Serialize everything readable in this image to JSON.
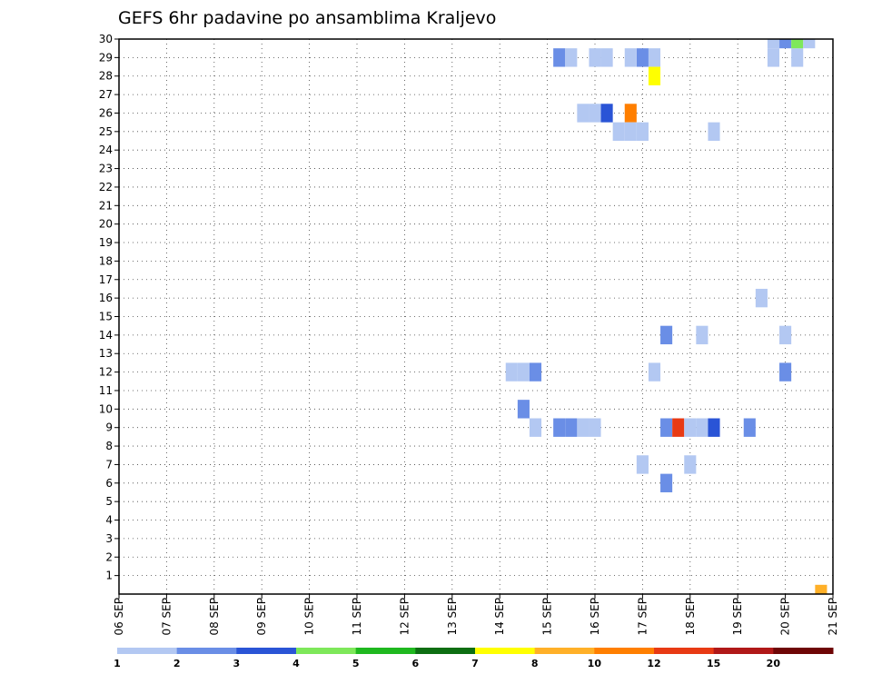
{
  "chart_data": {
    "type": "heatmap",
    "title": "GEFS 6hr padavine po ansamblima Kraljevo",
    "xlabel": "",
    "ylabel": "",
    "x_tick_labels": [
      "06 SEP",
      "07 SEP",
      "08 SEP",
      "09 SEP",
      "10 SEP",
      "11 SEP",
      "12 SEP",
      "13 SEP",
      "14 SEP",
      "15 SEP",
      "16 SEP",
      "17 SEP",
      "18 SEP",
      "19 SEP",
      "20 SEP",
      "21 SEP"
    ],
    "x_range_days": [
      0,
      15
    ],
    "x_step_days": 0.25,
    "y_ticks": [
      1,
      2,
      3,
      4,
      5,
      6,
      7,
      8,
      9,
      10,
      11,
      12,
      13,
      14,
      15,
      16,
      17,
      18,
      19,
      20,
      21,
      22,
      23,
      24,
      25,
      26,
      27,
      28,
      29,
      30
    ],
    "y_range": [
      0,
      30
    ],
    "grid": true,
    "colorbar": {
      "placement": "bottom",
      "tick_labels": [
        "1",
        "2",
        "3",
        "4",
        "5",
        "6",
        "7",
        "8",
        "10",
        "12",
        "15",
        "20"
      ],
      "colors": [
        "#b3c8f2",
        "#6a8ee6",
        "#2a54d6",
        "#7ee85a",
        "#1fb81f",
        "#0d6e12",
        "#ffff00",
        "#ffb028",
        "#ff7f00",
        "#e83a14",
        "#b01818",
        "#6e0505"
      ]
    },
    "cells": [
      {
        "t": 11.0,
        "member": 29,
        "level": 2
      },
      {
        "t": 11.25,
        "member": 29,
        "level": 1
      },
      {
        "t": 13.75,
        "member": 29,
        "level": 1
      },
      {
        "t": 14.25,
        "member": 29,
        "level": 1
      },
      {
        "t": 13.75,
        "member": 30,
        "level": 1
      },
      {
        "t": 14.0,
        "member": 30,
        "level": 2
      },
      {
        "t": 14.25,
        "member": 30,
        "level": 4
      },
      {
        "t": 14.5,
        "member": 30,
        "level": 1
      },
      {
        "t": 11.0,
        "member": 7,
        "level": 1
      },
      {
        "t": 11.5,
        "member": 6,
        "level": 2
      },
      {
        "t": 12.0,
        "member": 7,
        "level": 1
      },
      {
        "t": 11.25,
        "member": 12,
        "level": 1
      },
      {
        "t": 11.5,
        "member": 9,
        "level": 2
      },
      {
        "t": 11.75,
        "member": 9,
        "level": 10
      },
      {
        "t": 12.0,
        "member": 9,
        "level": 1
      },
      {
        "t": 12.25,
        "member": 9,
        "level": 1
      },
      {
        "t": 12.5,
        "member": 9,
        "level": 3
      },
      {
        "t": 13.25,
        "member": 9,
        "level": 2
      },
      {
        "t": 11.5,
        "member": 14,
        "level": 2
      },
      {
        "t": 12.25,
        "member": 14,
        "level": 1
      },
      {
        "t": 13.5,
        "member": 16,
        "level": 1
      },
      {
        "t": 14.0,
        "member": 14,
        "level": 1
      },
      {
        "t": 14.0,
        "member": 12,
        "level": 2
      },
      {
        "t": 8.25,
        "member": 12,
        "level": 1
      },
      {
        "t": 8.5,
        "member": 12,
        "level": 1
      },
      {
        "t": 8.75,
        "member": 12,
        "level": 2
      },
      {
        "t": 8.5,
        "member": 10,
        "level": 2
      },
      {
        "t": 8.75,
        "member": 9,
        "level": 1
      },
      {
        "t": 9.25,
        "member": 9,
        "level": 2
      },
      {
        "t": 9.5,
        "member": 9,
        "level": 2
      },
      {
        "t": 9.75,
        "member": 9,
        "level": 1
      },
      {
        "t": 10.0,
        "member": 9,
        "level": 1
      },
      {
        "t": 9.25,
        "member": 29,
        "level": 2
      },
      {
        "t": 9.5,
        "member": 29,
        "level": 1
      },
      {
        "t": 9.75,
        "member": 26,
        "level": 1
      },
      {
        "t": 10.0,
        "member": 26,
        "level": 1
      },
      {
        "t": 10.25,
        "member": 26,
        "level": 3
      },
      {
        "t": 10.75,
        "member": 26,
        "level": 9
      },
      {
        "t": 10.0,
        "member": 29,
        "level": 1
      },
      {
        "t": 10.25,
        "member": 29,
        "level": 1
      },
      {
        "t": 10.75,
        "member": 29,
        "level": 1
      },
      {
        "t": 10.5,
        "member": 25,
        "level": 1
      },
      {
        "t": 10.75,
        "member": 25,
        "level": 1
      },
      {
        "t": 11.0,
        "member": 25,
        "level": 1
      },
      {
        "t": 11.25,
        "member": 28,
        "level": 7
      },
      {
        "t": 12.5,
        "member": 25,
        "level": 1
      },
      {
        "t": 14.75,
        "member": 0,
        "level": 8
      }
    ]
  }
}
